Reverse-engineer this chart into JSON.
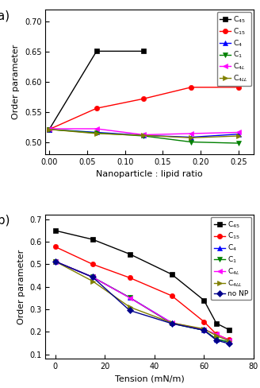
{
  "plot_a": {
    "xlabel": "Nanoparticle : lipid ratio",
    "ylabel": "Order parameter",
    "xlim": [
      -0.005,
      0.27
    ],
    "ylim": [
      0.48,
      0.72
    ],
    "yticks": [
      0.5,
      0.55,
      0.6,
      0.65,
      0.7
    ],
    "xticks": [
      0.0,
      0.05,
      0.1,
      0.15,
      0.2,
      0.25
    ],
    "series": [
      {
        "label": "C$_{45}$",
        "x": [
          0.0,
          0.0625,
          0.125
        ],
        "y": [
          0.521,
          0.651,
          0.651
        ],
        "color": "black",
        "marker": "s",
        "markersize": 4.5
      },
      {
        "label": "C$_{15}$",
        "x": [
          0.0,
          0.0625,
          0.125,
          0.1875,
          0.25
        ],
        "y": [
          0.521,
          0.556,
          0.572,
          0.591,
          0.591
        ],
        "color": "red",
        "marker": "o",
        "markersize": 4.5
      },
      {
        "label": "C$_4$",
        "x": [
          0.0,
          0.0625,
          0.125,
          0.1875,
          0.25
        ],
        "y": [
          0.521,
          0.516,
          0.511,
          0.508,
          0.513
        ],
        "color": "blue",
        "marker": "^",
        "markersize": 4.5
      },
      {
        "label": "C$_1$",
        "x": [
          0.0,
          0.0625,
          0.125,
          0.1875,
          0.25
        ],
        "y": [
          0.521,
          0.515,
          0.51,
          0.5,
          0.498
        ],
        "color": "green",
        "marker": "v",
        "markersize": 4.5
      },
      {
        "label": "C$_{4L}$",
        "x": [
          0.0,
          0.0625,
          0.125,
          0.1875,
          0.25
        ],
        "y": [
          0.522,
          0.522,
          0.512,
          0.514,
          0.516
        ],
        "color": "magenta",
        "marker": "<",
        "markersize": 4.5
      },
      {
        "label": "C$_{4LL}$",
        "x": [
          0.0,
          0.0625,
          0.125,
          0.1875,
          0.25
        ],
        "y": [
          0.521,
          0.514,
          0.511,
          0.507,
          0.51
        ],
        "color": "#808000",
        "marker": ">",
        "markersize": 4.5
      }
    ]
  },
  "plot_b": {
    "xlabel": "Tension (mN/m)",
    "ylabel": "Order parameter",
    "xlim": [
      -4,
      80
    ],
    "ylim": [
      0.08,
      0.72
    ],
    "yticks": [
      0.1,
      0.2,
      0.3,
      0.4,
      0.5,
      0.6,
      0.7
    ],
    "xticks": [
      0,
      20,
      40,
      60,
      80
    ],
    "series": [
      {
        "label": "C$_{45}$",
        "x": [
          0,
          15,
          30,
          47,
          60,
          65,
          70
        ],
        "y": [
          0.649,
          0.61,
          0.545,
          0.455,
          0.34,
          0.238,
          0.21
        ],
        "color": "black",
        "marker": "s",
        "markersize": 4.5
      },
      {
        "label": "C$_{15}$",
        "x": [
          0,
          15,
          30,
          47,
          60,
          65,
          70
        ],
        "y": [
          0.577,
          0.5,
          0.44,
          0.36,
          0.245,
          0.19,
          0.165
        ],
        "color": "red",
        "marker": "o",
        "markersize": 4.5
      },
      {
        "label": "C$_4$",
        "x": [
          0,
          15,
          30,
          47,
          60,
          65,
          70
        ],
        "y": [
          0.512,
          0.443,
          0.352,
          0.24,
          0.207,
          0.167,
          0.155
        ],
        "color": "blue",
        "marker": "^",
        "markersize": 4.5
      },
      {
        "label": "C$_1$",
        "x": [
          0,
          15,
          30,
          47,
          60,
          65,
          70
        ],
        "y": [
          0.512,
          0.443,
          0.352,
          0.237,
          0.207,
          0.168,
          0.155
        ],
        "color": "green",
        "marker": "v",
        "markersize": 4.5
      },
      {
        "label": "C$_{4L}$",
        "x": [
          0,
          15,
          30,
          47,
          60,
          65,
          70
        ],
        "y": [
          0.512,
          0.443,
          0.351,
          0.24,
          0.21,
          0.19,
          0.163
        ],
        "color": "magenta",
        "marker": "<",
        "markersize": 4.5
      },
      {
        "label": "C$_{4LL}$",
        "x": [
          0,
          15,
          30,
          47,
          60,
          65,
          70
        ],
        "y": [
          0.512,
          0.425,
          0.31,
          0.24,
          0.213,
          0.183,
          0.16
        ],
        "color": "#808000",
        "marker": ">",
        "markersize": 4.5
      },
      {
        "label": "no NP",
        "x": [
          0,
          15,
          30,
          47,
          60,
          65,
          70
        ],
        "y": [
          0.512,
          0.443,
          0.295,
          0.237,
          0.207,
          0.163,
          0.148
        ],
        "color": "#00008B",
        "marker": "D",
        "markersize": 4
      }
    ]
  },
  "label_fontsize": 8,
  "tick_fontsize": 7,
  "legend_fontsize": 6.5,
  "linewidth": 1.0
}
